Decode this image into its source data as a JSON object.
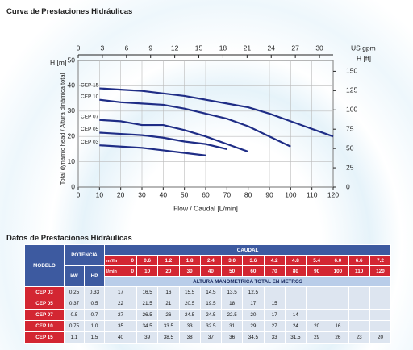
{
  "title": "Curva de Prestaciones Hidráulicas",
  "chart_data": {
    "type": "line",
    "xlabel": "Flow / Caudal [L/min]",
    "ylabel": "Total dynamic head / Altura dinámica total",
    "yunit": "H [m]",
    "y2unit": "H [ft]",
    "x2unit": "US gpm",
    "xlim": [
      0,
      120
    ],
    "xticks": [
      0,
      10,
      20,
      30,
      40,
      50,
      60,
      70,
      80,
      90,
      100,
      110,
      120
    ],
    "x2lim": [
      0,
      31.7
    ],
    "x2ticks": [
      0,
      3,
      6,
      9,
      12,
      15,
      18,
      21,
      24,
      27,
      30
    ],
    "ylim": [
      0,
      50
    ],
    "yticks": [
      0,
      10,
      20,
      30,
      40,
      50
    ],
    "y2lim": [
      0,
      164
    ],
    "y2ticks": [
      0,
      25,
      50,
      75,
      100,
      125,
      150
    ],
    "grid": true,
    "series": [
      {
        "name": "CEP 15",
        "color": "#1f2d86",
        "x": [
          10,
          20,
          30,
          40,
          50,
          60,
          70,
          80,
          90,
          100,
          110,
          120
        ],
        "values": [
          39,
          38.5,
          38,
          37,
          36,
          34.5,
          33,
          31.5,
          29,
          26,
          23,
          20
        ]
      },
      {
        "name": "CEP 10",
        "color": "#1f2d86",
        "x": [
          10,
          20,
          30,
          40,
          50,
          60,
          70,
          80,
          90,
          100
        ],
        "values": [
          34.5,
          33.5,
          33,
          32.5,
          31,
          29,
          27,
          24,
          20,
          16
        ]
      },
      {
        "name": "CEP 07",
        "color": "#1f2d86",
        "x": [
          10,
          20,
          30,
          40,
          50,
          60,
          70,
          80
        ],
        "values": [
          26.5,
          26,
          24.5,
          24.5,
          22.5,
          20,
          17,
          14
        ]
      },
      {
        "name": "CEP 05",
        "color": "#1f2d86",
        "x": [
          10,
          20,
          30,
          40,
          50,
          60,
          70
        ],
        "values": [
          21.5,
          21,
          20.5,
          19.5,
          18,
          17,
          15
        ]
      },
      {
        "name": "CEP 03",
        "color": "#1f2d86",
        "x": [
          10,
          20,
          30,
          40,
          50,
          60
        ],
        "values": [
          16.5,
          16,
          15.5,
          14.5,
          13.5,
          12.5
        ]
      }
    ]
  },
  "table": {
    "title": "Datos de Prestaciones Hidráulicas",
    "header": {
      "model": "MODELO",
      "power": "POTENCIA",
      "kw": "kW",
      "hp": "HP",
      "flow": "CAUDAL",
      "m3h_label": "m³/hr",
      "lmin_label": "l/min",
      "head": "ALTURA MANOMETRICA TOTAL EN METROS"
    },
    "m3h": [
      "0",
      "0.6",
      "1.2",
      "1.8",
      "2.4",
      "3.0",
      "3.6",
      "4.2",
      "4.8",
      "5.4",
      "6.0",
      "6.6",
      "7.2"
    ],
    "lmin": [
      "0",
      "10",
      "20",
      "30",
      "40",
      "50",
      "60",
      "70",
      "80",
      "90",
      "100",
      "110",
      "120"
    ],
    "rows": [
      {
        "model": "CEP 03",
        "kw": "0.25",
        "hp": "0.33",
        "heads": [
          "17",
          "16.5",
          "16",
          "15.5",
          "14.5",
          "13.5",
          "12.5"
        ]
      },
      {
        "model": "CEP 05",
        "kw": "0.37",
        "hp": "0.5",
        "heads": [
          "22",
          "21.5",
          "21",
          "20.5",
          "19.5",
          "18",
          "17",
          "15"
        ]
      },
      {
        "model": "CEP 07",
        "kw": "0.5",
        "hp": "0.7",
        "heads": [
          "27",
          "26.5",
          "26",
          "24.5",
          "24.5",
          "22.5",
          "20",
          "17",
          "14"
        ]
      },
      {
        "model": "CEP 10",
        "kw": "0.75",
        "hp": "1.0",
        "heads": [
          "35",
          "34.5",
          "33.5",
          "33",
          "32.5",
          "31",
          "29",
          "27",
          "24",
          "20",
          "16"
        ]
      },
      {
        "model": "CEP 15",
        "kw": "1.1",
        "hp": "1.5",
        "heads": [
          "40",
          "39",
          "38.5",
          "38",
          "37",
          "36",
          "34.5",
          "33",
          "31.5",
          "29",
          "26",
          "23",
          "20"
        ]
      }
    ]
  }
}
